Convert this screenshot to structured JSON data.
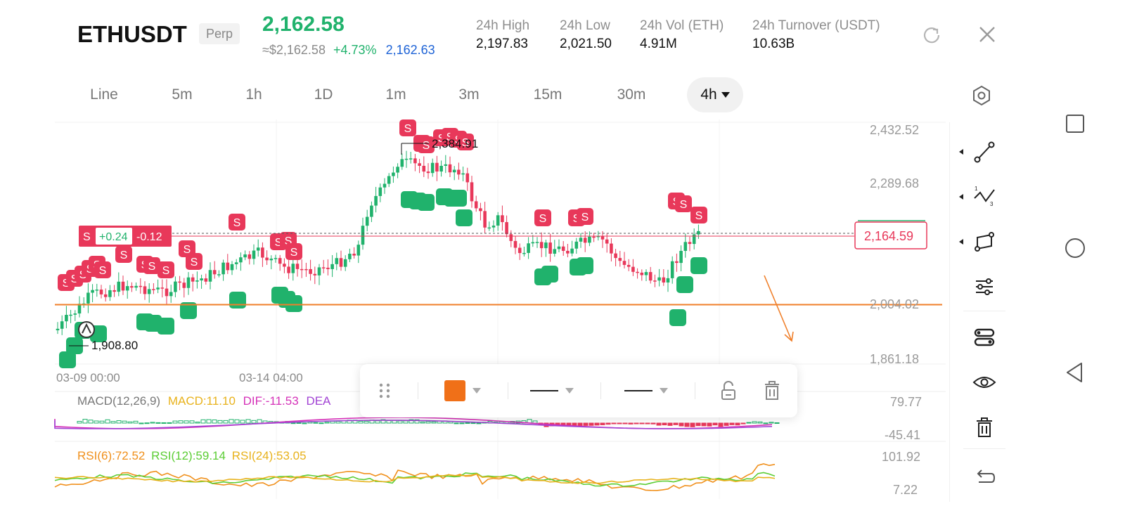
{
  "header": {
    "symbol": "ETHUSDT",
    "contract_type": "Perp",
    "last_price": "2,162.58",
    "approx_price": "≈$2,162.58",
    "change_pct": "+4.73%",
    "mark_price": "2,162.63",
    "stats": [
      {
        "label": "24h  High",
        "value": "2,197.83"
      },
      {
        "label": "24h  Low",
        "value": "2,021.50"
      },
      {
        "label": "24h  Vol (ETH)",
        "value": "4.91M"
      },
      {
        "label": "24h  Turnover (USDT)",
        "value": "10.63B"
      }
    ]
  },
  "timeframes": [
    {
      "label": "Line"
    },
    {
      "label": "5m"
    },
    {
      "label": "1h"
    },
    {
      "label": "1D"
    },
    {
      "label": "1m"
    },
    {
      "label": "3m"
    },
    {
      "label": "15m"
    },
    {
      "label": "30m"
    },
    {
      "label": "4h",
      "active": true
    }
  ],
  "chart": {
    "price_axis": [
      "2,432.52",
      "2,289.68",
      "2,004.02",
      "1,861.18"
    ],
    "price_range": [
      1861.18,
      2432.52
    ],
    "date_labels": [
      "03-09 00:00",
      "03-14 04:00"
    ],
    "high_marker": "2,384.91",
    "low_marker": "1,908.80",
    "current_price_tag": "2,164.59",
    "position_tag": {
      "side": "S",
      "pnl": "+0.24",
      "value": "-0.12"
    },
    "horizontal_line_price": 2004.02,
    "colors": {
      "up": "#20b26c",
      "down": "#e8385a",
      "line": "#f07f2a"
    }
  },
  "macd": {
    "label": "MACD(12,26,9)",
    "macd": "MACD:11.10",
    "dif": "DIF:-11.53",
    "dea": "DEA",
    "axis_top": "79.77",
    "axis_bottom": "-45.41"
  },
  "rsi": {
    "rsi6": "RSI(6):72.52",
    "rsi12": "RSI(12):59.14",
    "rsi24": "RSI(24):53.05",
    "axis_top": "101.92",
    "axis_bottom": "7.22"
  },
  "drawing_toolbar": {
    "color": "#f07018"
  },
  "tools": [
    "trend-line-tool",
    "fib-tool",
    "shape-tool",
    "indicator-settings-tool",
    "layout-tool",
    "visibility-tool",
    "delete-tool",
    "undo-tool"
  ]
}
